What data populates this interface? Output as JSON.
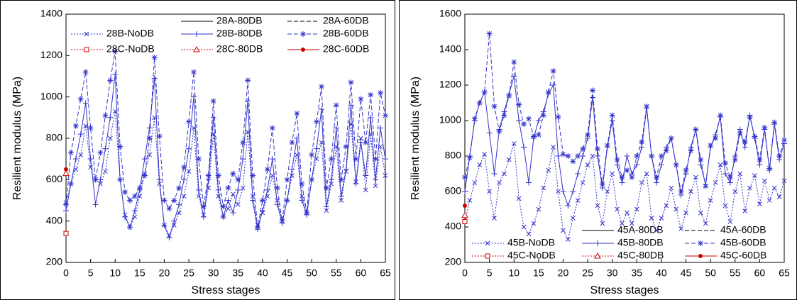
{
  "chart_data": [
    {
      "type": "line",
      "xlabel": "Stress stages",
      "ylabel": "Resilient modulus (MPa)",
      "xlim": [
        0,
        65
      ],
      "xticks": [
        0,
        5,
        10,
        15,
        20,
        25,
        30,
        35,
        40,
        45,
        50,
        55,
        60,
        65
      ],
      "ylim": [
        200,
        1400
      ],
      "yticks": [
        200,
        400,
        600,
        800,
        1000,
        1200,
        1400
      ],
      "legend": "top",
      "x": [
        0,
        1,
        2,
        3,
        4,
        5,
        6,
        7,
        8,
        9,
        10,
        11,
        12,
        13,
        14,
        15,
        16,
        17,
        18,
        19,
        20,
        21,
        22,
        23,
        24,
        25,
        26,
        27,
        28,
        29,
        30,
        31,
        32,
        33,
        34,
        35,
        36,
        37,
        38,
        39,
        40,
        41,
        42,
        43,
        44,
        45,
        46,
        47,
        48,
        49,
        50,
        51,
        52,
        53,
        54,
        55,
        56,
        57,
        58,
        59,
        60,
        61,
        62,
        63,
        64,
        65
      ],
      "series": [
        {
          "name": "28A-80DB",
          "color": "#000000",
          "dash": "solid",
          "marker": "none",
          "x": [],
          "values": []
        },
        {
          "name": "28A-60DB",
          "color": "#000000",
          "dash": "dashed",
          "marker": "none",
          "x": [],
          "values": []
        },
        {
          "name": "28B-NoDB",
          "color": "#3333cc",
          "dash": "dotted",
          "marker": "x",
          "values": [
            490,
            580,
            650,
            720,
            860,
            660,
            600,
            580,
            640,
            800,
            930,
            600,
            430,
            370,
            420,
            520,
            630,
            720,
            900,
            580,
            380,
            330,
            380,
            440,
            520,
            640,
            850,
            520,
            430,
            560,
            820,
            520,
            420,
            460,
            530,
            480,
            560,
            830,
            520,
            380,
            440,
            520,
            620,
            500,
            400,
            500,
            620,
            720,
            520,
            440,
            600,
            700,
            780,
            450,
            580,
            760,
            500,
            640,
            870,
            590,
            800,
            550,
            820,
            570,
            760,
            620
          ]
        },
        {
          "name": "28B-80DB",
          "color": "#3333cc",
          "dash": "solid",
          "marker": "plus",
          "values": [
            450,
            580,
            700,
            820,
            970,
            700,
            480,
            600,
            750,
            900,
            1110,
            600,
            420,
            370,
            450,
            550,
            700,
            850,
            1090,
            600,
            380,
            320,
            400,
            480,
            600,
            750,
            1000,
            550,
            420,
            600,
            900,
            550,
            420,
            500,
            440,
            550,
            700,
            980,
            500,
            360,
            450,
            550,
            700,
            480,
            390,
            500,
            650,
            800,
            500,
            430,
            600,
            750,
            940,
            470,
            600,
            850,
            520,
            650,
            960,
            580,
            780,
            620,
            900,
            600,
            850,
            700
          ]
        },
        {
          "name": "28B-60DB",
          "color": "#3333cc",
          "dash": "dashed",
          "marker": "star",
          "values": [
            480,
            730,
            860,
            990,
            1120,
            850,
            600,
            730,
            910,
            1080,
            1220,
            760,
            540,
            500,
            520,
            560,
            620,
            800,
            1190,
            810,
            500,
            460,
            500,
            560,
            660,
            880,
            1120,
            700,
            470,
            620,
            980,
            620,
            470,
            560,
            630,
            600,
            780,
            1080,
            620,
            370,
            500,
            650,
            850,
            560,
            400,
            600,
            780,
            920,
            580,
            440,
            720,
            880,
            1050,
            560,
            700,
            960,
            600,
            760,
            1070,
            700,
            990,
            780,
            1010,
            700,
            1020,
            910
          ]
        },
        {
          "name": "28C-NoDB",
          "color": "#cc0000",
          "dash": "dotted",
          "marker": "square",
          "x": [
            0
          ],
          "values": [
            340
          ]
        },
        {
          "name": "28C-80DB",
          "color": "#cc0000",
          "dash": "dotted",
          "marker": "triangle",
          "x": [
            0
          ],
          "values": [
            630
          ]
        },
        {
          "name": "28C-60DB",
          "color": "#cc0000",
          "dash": "solid",
          "marker": "circle",
          "x": [
            0
          ],
          "values": [
            650
          ]
        }
      ]
    },
    {
      "type": "line",
      "xlabel": "Stress stages",
      "ylabel": "Resilient modulus (MPa)",
      "xlim": [
        0,
        65
      ],
      "xticks": [
        0,
        5,
        10,
        15,
        20,
        25,
        30,
        35,
        40,
        45,
        50,
        55,
        60,
        65
      ],
      "ylim": [
        200,
        1600
      ],
      "yticks": [
        200,
        400,
        600,
        800,
        1000,
        1200,
        1400,
        1600
      ],
      "legend": "bottom",
      "x": [
        0,
        1,
        2,
        3,
        4,
        5,
        6,
        7,
        8,
        9,
        10,
        11,
        12,
        13,
        14,
        15,
        16,
        17,
        18,
        19,
        20,
        21,
        22,
        23,
        24,
        25,
        26,
        27,
        28,
        29,
        30,
        31,
        32,
        33,
        34,
        35,
        36,
        37,
        38,
        39,
        40,
        41,
        42,
        43,
        44,
        45,
        46,
        47,
        48,
        49,
        50,
        51,
        52,
        53,
        54,
        55,
        56,
        57,
        58,
        59,
        60,
        61,
        62,
        63,
        64,
        65
      ],
      "series": [
        {
          "name": "45A-80DB",
          "color": "#000000",
          "dash": "solid",
          "marker": "none",
          "x": [],
          "values": []
        },
        {
          "name": "45A-60DB",
          "color": "#000000",
          "dash": "dashed",
          "marker": "none",
          "x": [],
          "values": []
        },
        {
          "name": "45B-NoDB",
          "color": "#3333cc",
          "dash": "dotted",
          "marker": "x",
          "values": [
            430,
            550,
            650,
            750,
            810,
            600,
            450,
            650,
            700,
            780,
            870,
            560,
            400,
            360,
            420,
            500,
            620,
            720,
            850,
            600,
            380,
            330,
            450,
            550,
            650,
            750,
            800,
            520,
            420,
            600,
            700,
            500,
            420,
            480,
            420,
            500,
            650,
            700,
            450,
            380,
            450,
            520,
            620,
            500,
            390,
            480,
            600,
            680,
            480,
            420,
            550,
            650,
            750,
            520,
            430,
            600,
            700,
            490,
            620,
            690,
            530,
            660,
            550,
            620,
            570,
            660
          ]
        },
        {
          "name": "45B-80DB",
          "color": "#3333cc",
          "dash": "solid",
          "marker": "plus",
          "values": [
            600,
            800,
            1000,
            1100,
            1160,
            930,
            700,
            950,
            1050,
            1150,
            1250,
            1000,
            850,
            650,
            900,
            1000,
            1050,
            1150,
            1200,
            800,
            600,
            520,
            600,
            700,
            800,
            900,
            1130,
            800,
            620,
            850,
            1000,
            750,
            650,
            800,
            700,
            750,
            850,
            1070,
            800,
            650,
            750,
            850,
            900,
            750,
            580,
            700,
            850,
            950,
            750,
            640,
            850,
            920,
            1020,
            700,
            650,
            800,
            950,
            850,
            1030,
            900,
            750,
            950,
            720,
            980,
            780,
            870
          ]
        },
        {
          "name": "45B-60DB",
          "color": "#3333cc",
          "dash": "dashed",
          "marker": "star",
          "values": [
            680,
            790,
            1010,
            1100,
            1160,
            1490,
            1080,
            940,
            1030,
            1140,
            1330,
            1090,
            980,
            1010,
            910,
            920,
            1030,
            1160,
            1280,
            1020,
            810,
            800,
            770,
            800,
            840,
            920,
            1170,
            840,
            640,
            860,
            1030,
            780,
            680,
            720,
            680,
            800,
            880,
            1080,
            800,
            680,
            800,
            830,
            900,
            750,
            600,
            720,
            830,
            950,
            780,
            630,
            860,
            900,
            1030,
            760,
            680,
            780,
            930,
            880,
            1020,
            910,
            780,
            960,
            730,
            990,
            800,
            890
          ]
        },
        {
          "name": "45C-NoDB",
          "color": "#cc0000",
          "dash": "dotted",
          "marker": "square",
          "x": [
            0
          ],
          "values": [
            430
          ]
        },
        {
          "name": "45C-80DB",
          "color": "#cc0000",
          "dash": "dotted",
          "marker": "triangle",
          "x": [
            0
          ],
          "values": [
            465
          ]
        },
        {
          "name": "45C-60DB",
          "color": "#cc0000",
          "dash": "solid",
          "marker": "circle",
          "x": [
            0
          ],
          "values": [
            520
          ]
        }
      ]
    }
  ]
}
